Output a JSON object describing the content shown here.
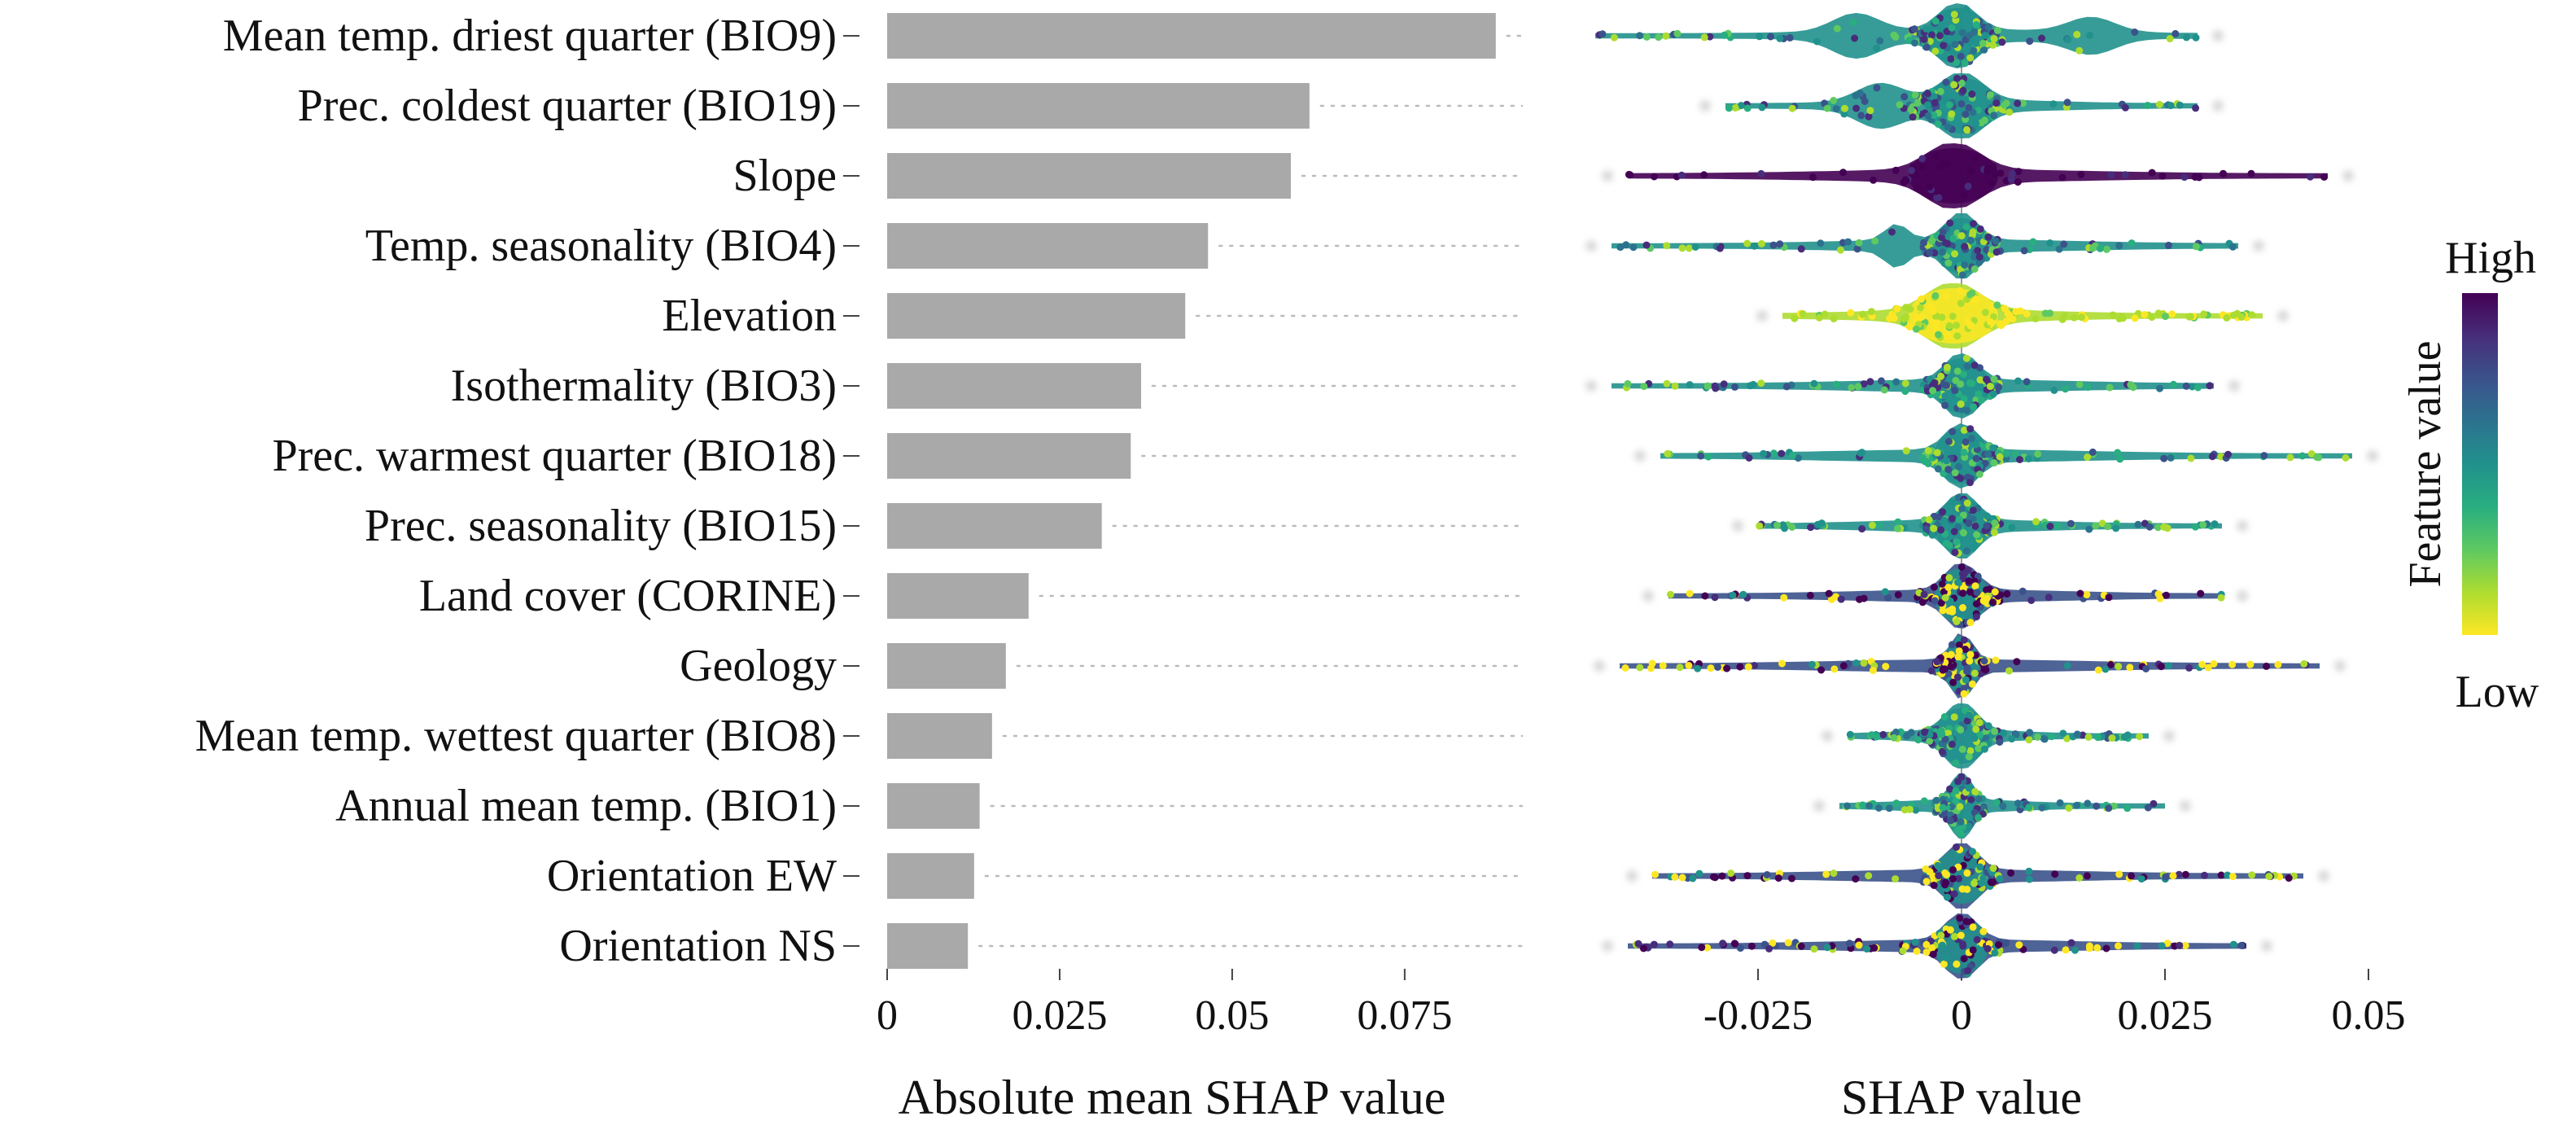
{
  "chart_data": [
    {
      "type": "bar",
      "orientation": "horizontal",
      "title": "",
      "xlabel": "Absolute mean SHAP value",
      "ylabel": "",
      "categories": [
        "Mean temp. driest quarter (BIO9)",
        "Prec. coldest quarter (BIO19)",
        "Slope",
        "Temp. seasonality (BIO4)",
        "Elevation",
        "Isothermality (BIO3)",
        "Prec. warmest quarter (BIO18)",
        "Prec. seasonality (BIO15)",
        "Land cover (CORINE)",
        "Geology",
        "Mean temp. wettest quarter (BIO8)",
        "Annual mean temp. (BIO1)",
        "Orientation EW",
        "Orientation NS"
      ],
      "values": [
        0.0882,
        0.0612,
        0.0585,
        0.0465,
        0.0432,
        0.0368,
        0.0353,
        0.0311,
        0.0205,
        0.0172,
        0.0152,
        0.0134,
        0.0126,
        0.0117
      ],
      "xlim": [
        0,
        0.092
      ],
      "xticks": [
        0,
        0.025,
        0.05,
        0.075
      ],
      "xtick_labels": [
        "0",
        "0.025",
        "0.05",
        "0.075"
      ],
      "bar_color": "#a9a9a9",
      "grid": "dotted guide lines after each bar"
    },
    {
      "type": "scatter",
      "subtype": "beeswarm",
      "title": "",
      "xlabel": "SHAP value",
      "ylabel": "",
      "xlim": [
        -0.047,
        0.053
      ],
      "xticks": [
        -0.025,
        0,
        0.025,
        0.05
      ],
      "xtick_labels": [
        "-0.025",
        "0",
        "0.025",
        "0.05"
      ],
      "zero_line": true,
      "features": [
        {
          "name": "Mean temp. driest quarter (BIO9)",
          "min": -0.045,
          "max": 0.029,
          "core": [
            -0.004,
            0.003
          ],
          "bulges": [
            {
              "x": -0.013,
              "w": 0.004,
              "h": 0.55
            },
            {
              "x": 0.016,
              "w": 0.004,
              "h": 0.45
            }
          ],
          "color_pattern": "mixed"
        },
        {
          "name": "Prec. coldest quarter (BIO19)",
          "min": -0.029,
          "max": 0.029,
          "core": [
            -0.004,
            0.004
          ],
          "bulges": [
            {
              "x": -0.01,
              "w": 0.004,
              "h": 0.55
            }
          ],
          "color_pattern": "mixed"
        },
        {
          "name": "Slope",
          "min": -0.041,
          "max": 0.045,
          "core": [
            -0.006,
            0.004
          ],
          "bulges": [],
          "color_pattern": "dark"
        },
        {
          "name": "Temp. seasonality (BIO4)",
          "min": -0.043,
          "max": 0.034,
          "core": [
            -0.003,
            0.003
          ],
          "bulges": [
            {
              "x": -0.008,
              "w": 0.002,
              "h": 0.5
            }
          ],
          "color_pattern": "mixed"
        },
        {
          "name": "Elevation",
          "min": -0.022,
          "max": 0.037,
          "core": [
            -0.006,
            0.004
          ],
          "bulges": [],
          "color_pattern": "yellow"
        },
        {
          "name": "Isothermality (BIO3)",
          "min": -0.043,
          "max": 0.031,
          "core": [
            -0.003,
            0.003
          ],
          "bulges": [],
          "color_pattern": "mixed"
        },
        {
          "name": "Prec. warmest quarter (BIO18)",
          "min": -0.037,
          "max": 0.048,
          "core": [
            -0.003,
            0.003
          ],
          "bulges": [],
          "color_pattern": "mixed"
        },
        {
          "name": "Prec. seasonality (BIO15)",
          "min": -0.025,
          "max": 0.032,
          "core": [
            -0.003,
            0.003
          ],
          "bulges": [],
          "color_pattern": "mixed"
        },
        {
          "name": "Land cover (CORINE)",
          "min": -0.036,
          "max": 0.032,
          "core": [
            -0.003,
            0.003
          ],
          "bulges": [],
          "color_pattern": "scattered"
        },
        {
          "name": "Geology",
          "min": -0.042,
          "max": 0.044,
          "core": [
            -0.002,
            0.002
          ],
          "bulges": [],
          "color_pattern": "scattered"
        },
        {
          "name": "Mean temp. wettest quarter (BIO8)",
          "min": -0.014,
          "max": 0.023,
          "core": [
            -0.003,
            0.003
          ],
          "bulges": [],
          "color_pattern": "mixed"
        },
        {
          "name": "Annual mean temp. (BIO1)",
          "min": -0.015,
          "max": 0.025,
          "core": [
            -0.002,
            0.002
          ],
          "bulges": [],
          "color_pattern": "mixed"
        },
        {
          "name": "Orientation EW",
          "min": -0.038,
          "max": 0.042,
          "core": [
            -0.003,
            0.003
          ],
          "bulges": [],
          "color_pattern": "scattered"
        },
        {
          "name": "Orientation NS",
          "min": -0.041,
          "max": 0.035,
          "core": [
            -0.003,
            0.003
          ],
          "bulges": [],
          "color_pattern": "scattered"
        }
      ]
    }
  ],
  "legend": {
    "title": "Feature value",
    "high": "High",
    "low": "Low",
    "colormap": "viridis",
    "colors": [
      "#fde725",
      "#addc30",
      "#5ec962",
      "#28ae80",
      "#21918c",
      "#2c728e",
      "#3b528b",
      "#472d7b",
      "#440154"
    ]
  }
}
